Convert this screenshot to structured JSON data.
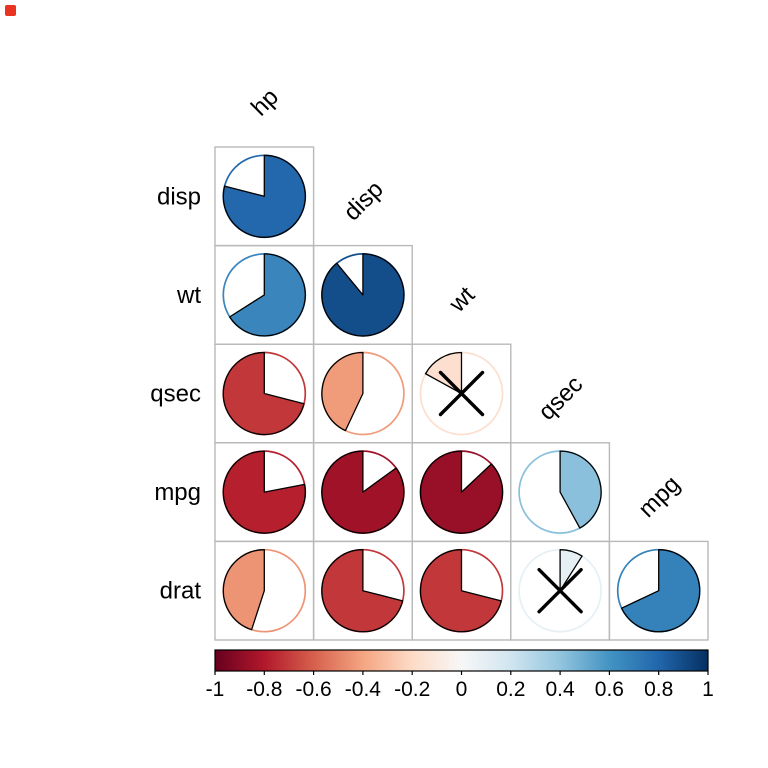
{
  "chart_data": {
    "type": "heatmap",
    "subtype": "correlation-pie-matrix",
    "title": "",
    "glyph": "pie",
    "col_vars": [
      "hp",
      "disp",
      "wt",
      "qsec",
      "mpg"
    ],
    "row_vars": [
      "disp",
      "wt",
      "qsec",
      "mpg",
      "drat"
    ],
    "cells": [
      {
        "row": "disp",
        "col": "hp",
        "value": 0.79,
        "significant": true
      },
      {
        "row": "wt",
        "col": "hp",
        "value": 0.66,
        "significant": true
      },
      {
        "row": "wt",
        "col": "disp",
        "value": 0.89,
        "significant": true
      },
      {
        "row": "qsec",
        "col": "hp",
        "value": -0.71,
        "significant": true
      },
      {
        "row": "qsec",
        "col": "disp",
        "value": -0.43,
        "significant": true
      },
      {
        "row": "qsec",
        "col": "wt",
        "value": -0.17,
        "significant": false
      },
      {
        "row": "mpg",
        "col": "hp",
        "value": -0.78,
        "significant": true
      },
      {
        "row": "mpg",
        "col": "disp",
        "value": -0.85,
        "significant": true
      },
      {
        "row": "mpg",
        "col": "wt",
        "value": -0.87,
        "significant": true
      },
      {
        "row": "mpg",
        "col": "qsec",
        "value": 0.42,
        "significant": true
      },
      {
        "row": "drat",
        "col": "hp",
        "value": -0.45,
        "significant": true
      },
      {
        "row": "drat",
        "col": "disp",
        "value": -0.71,
        "significant": true
      },
      {
        "row": "drat",
        "col": "wt",
        "value": -0.71,
        "significant": true
      },
      {
        "row": "drat",
        "col": "qsec",
        "value": 0.09,
        "significant": false
      },
      {
        "row": "drat",
        "col": "mpg",
        "value": 0.68,
        "significant": true
      }
    ],
    "insignificance_mark": "X",
    "palette": [
      "#67001f",
      "#b2182b",
      "#d6604d",
      "#f4a582",
      "#fddbc7",
      "#f7f7f7",
      "#d1e5f0",
      "#92c5de",
      "#4393c3",
      "#2166ac",
      "#053061"
    ],
    "colorbar": {
      "min": -1,
      "max": 1,
      "position": "bottom",
      "ticks": [
        "-1",
        "-0.8",
        "-0.6",
        "-0.4",
        "-0.2",
        "0",
        "0.2",
        "0.4",
        "0.6",
        "0.8",
        "1"
      ]
    },
    "layout": {
      "triangle": "lower",
      "grid": true,
      "positive_fill_direction": "clockwise",
      "negative_fill_direction": "counterclockwise"
    }
  },
  "colors": {
    "grid_line": "#b9b9b9",
    "pie_wedge_outline": "#000000",
    "colorbar_border": "#000000",
    "text": "#000000",
    "background": "#ffffff",
    "corner_marker": "#eb3323"
  }
}
